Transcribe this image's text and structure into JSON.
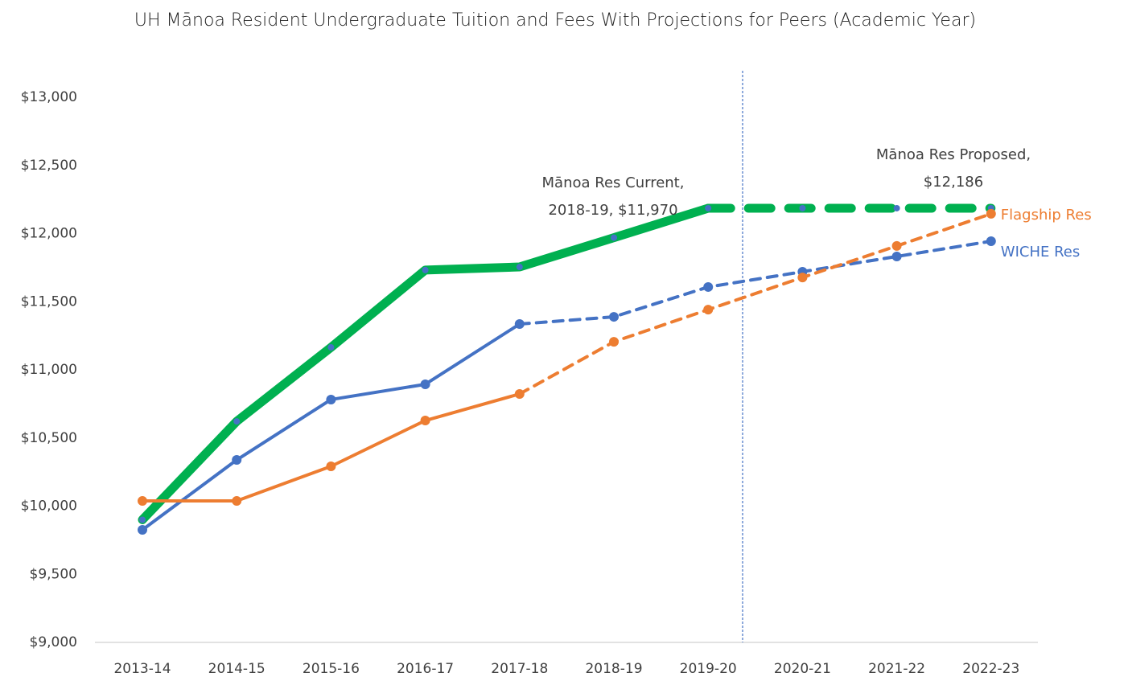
{
  "chart_data": {
    "type": "line",
    "title": "UH Mānoa Resident Undergraduate Tuition and Fees With Projections for Peers (Academic Year)",
    "categories": [
      "2013-14",
      "2014-15",
      "2015-16",
      "2016-17",
      "2017-18",
      "2018-19",
      "2019-20",
      "2020-21",
      "2021-22",
      "2022-23"
    ],
    "ylim": [
      9000,
      13000
    ],
    "yticks": [
      {
        "value": 9000,
        "label": "$9,000"
      },
      {
        "value": 9500,
        "label": "$9,500"
      },
      {
        "value": 10000,
        "label": "$10,000"
      },
      {
        "value": 10500,
        "label": "$10,500"
      },
      {
        "value": 11000,
        "label": "$11,000"
      },
      {
        "value": 11500,
        "label": "$11,500"
      },
      {
        "value": 12000,
        "label": "$12,000"
      },
      {
        "value": 12500,
        "label": "$12,500"
      },
      {
        "value": 13000,
        "label": "$13,000"
      }
    ],
    "grid": false,
    "series": [
      {
        "color": "#00b050",
        "marker_color": "#4472c4",
        "width": 11,
        "dashed_from": 6,
        "values": [
          9900,
          10622,
          11165,
          11732,
          11755,
          11970,
          12186,
          12186,
          12186,
          12186
        ]
      },
      {
        "name": "WICHE Res",
        "color": "#4472c4",
        "width": 4,
        "dashed_from": 4,
        "values": [
          9826,
          10339,
          10782,
          10894,
          11336,
          11389,
          11608,
          11720,
          11832,
          11944
        ]
      },
      {
        "name": "Flagship Res",
        "color": "#ed7d31",
        "width": 4,
        "dashed_from": 4,
        "values": [
          10038,
          10038,
          10292,
          10628,
          10823,
          11206,
          11442,
          11678,
          11909,
          12145
        ]
      }
    ],
    "annotations": [
      {
        "lines": [
          "Mānoa Res Current,",
          "2018-19, $11,970"
        ]
      },
      {
        "lines": [
          "Mānoa Res Proposed,",
          "$12,186"
        ]
      }
    ]
  }
}
